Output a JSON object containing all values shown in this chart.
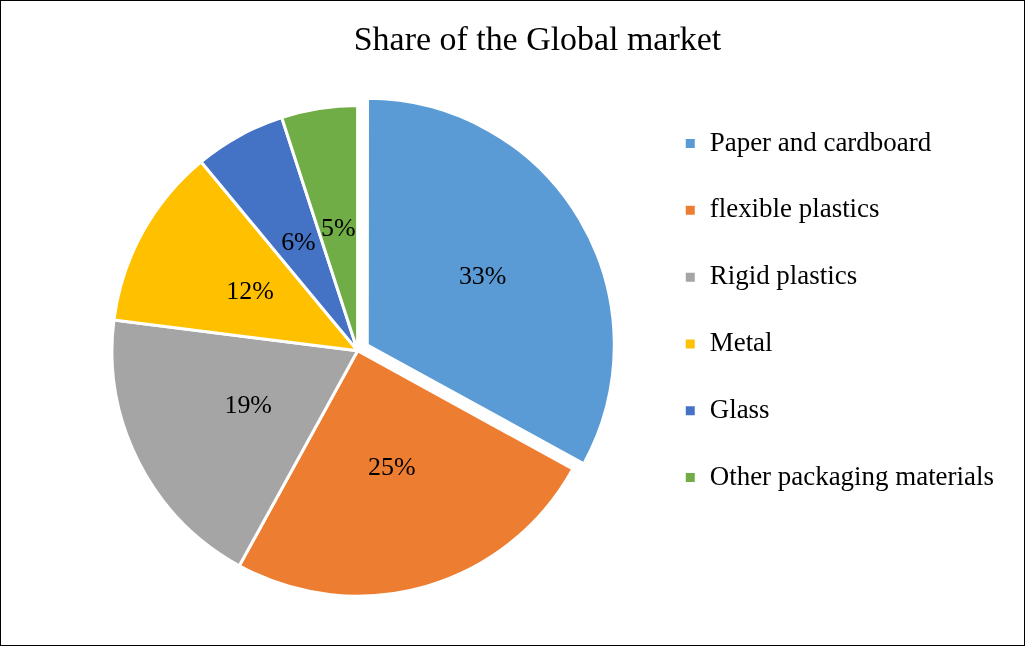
{
  "chart_data": {
    "type": "pie",
    "title": "Share of the Global market",
    "categories": [
      "Paper and cardboard",
      "flexible plastics",
      "Rigid plastics",
      "Metal",
      "Glass",
      "Other packaging materials"
    ],
    "values": [
      33,
      25,
      19,
      12,
      6,
      5
    ],
    "colors": [
      "#5b9bd5",
      "#ed7d31",
      "#a5a5a5",
      "#ffc000",
      "#4472c4",
      "#70ad47"
    ],
    "value_labels": [
      "33%",
      "25%",
      "19%",
      "12%",
      "6%",
      "5%"
    ],
    "legend": "right"
  }
}
